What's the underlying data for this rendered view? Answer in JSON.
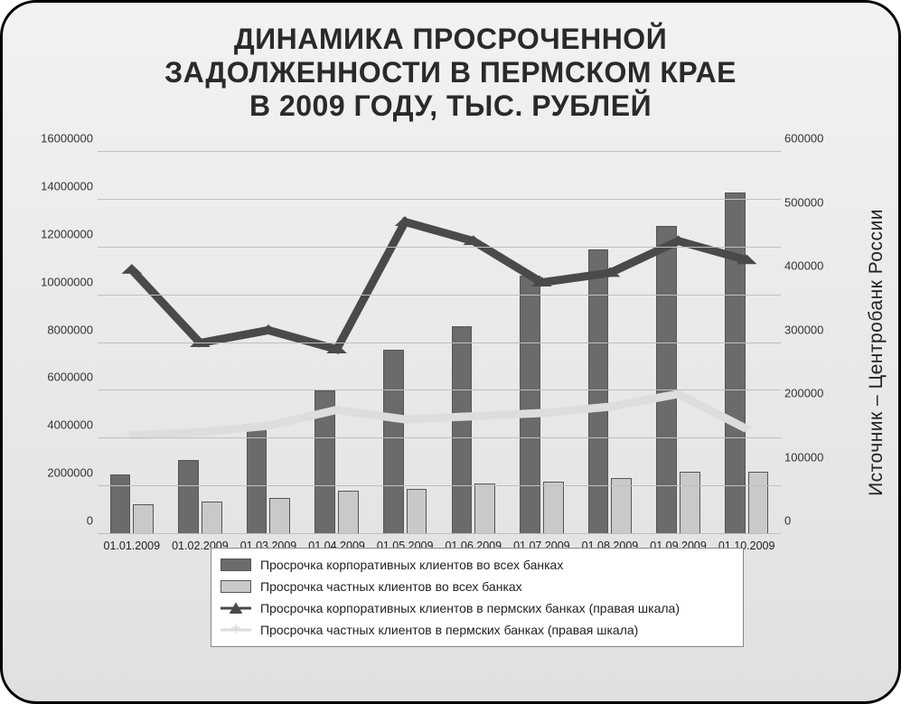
{
  "title_lines": [
    "ДИНАМИКА ПРОСРОЧЕННОЙ",
    "ЗАДОЛЖЕННОСТИ В ПЕРМСКОМ КРАЕ",
    "В 2009 ГОДУ, ТЫС. РУБЛЕЙ"
  ],
  "source_label": "Источник – Центробанк России",
  "chart": {
    "type": "bar+line-dual-axis",
    "categories": [
      "01.01.2009",
      "01.02.2009",
      "01.03.2009",
      "01.04.2009",
      "01.05.2009",
      "01.06.2009",
      "01.07.2009",
      "01.08.2009",
      "01.09.2009",
      "01.10.2009"
    ],
    "y_left": {
      "min": 0,
      "max": 16000000,
      "step": 2000000,
      "ticks": [
        "0",
        "2000000",
        "4000000",
        "6000000",
        "8000000",
        "10000000",
        "12000000",
        "14000000",
        "16000000"
      ]
    },
    "y_right": {
      "min": 0,
      "max": 600000,
      "step": 100000,
      "ticks": [
        "0",
        "100000",
        "200000",
        "300000",
        "400000",
        "500000",
        "600000"
      ]
    },
    "bars_dark": {
      "label": "Просрочка корпоративных клиентов во всех банках",
      "color": "#6b6b6b",
      "border": "#555555",
      "values": [
        2500000,
        3100000,
        4600000,
        6000000,
        7700000,
        8700000,
        10800000,
        11900000,
        12900000,
        14300000
      ]
    },
    "bars_light": {
      "label": "Просрочка частных клиентов во всех банках",
      "color": "#c9c9c9",
      "border": "#555555",
      "values": [
        1250000,
        1350000,
        1500000,
        1800000,
        1900000,
        2100000,
        2200000,
        2350000,
        2600000,
        2600000
      ]
    },
    "line_dark": {
      "label": "Просрочка корпоративных клиентов в пермских банках (правая шкала)",
      "color": "#4a4a4a",
      "width": 3,
      "marker": "triangle",
      "marker_size": 12,
      "values": [
        415000,
        300000,
        320000,
        290000,
        490000,
        460000,
        395000,
        410000,
        460000,
        430000
      ]
    },
    "line_light": {
      "label": "Просрочка частных клиентов в пермских банках (правая шкала)",
      "color": "#dddddd",
      "width": 3,
      "marker": "star",
      "marker_size": 12,
      "values": [
        155000,
        160000,
        170000,
        195000,
        180000,
        185000,
        190000,
        200000,
        220000,
        165000
      ]
    },
    "background": "linear-gradient(#f2f2f2,#e0e0e0)",
    "grid_color": "#bfbfbf",
    "axis_fontsize": 13,
    "title_fontsize": 32
  },
  "legend": {
    "items": [
      {
        "kind": "bar",
        "color": "#6b6b6b",
        "label": "Просрочка корпоративных клиентов во всех банках"
      },
      {
        "kind": "bar",
        "color": "#c9c9c9",
        "label": "Просрочка частных клиентов во всех банках"
      },
      {
        "kind": "line",
        "color": "#4a4a4a",
        "marker": "triangle",
        "label": "Просрочка корпоративных клиентов в пермских банках (правая шкала)"
      },
      {
        "kind": "line",
        "color": "#dddddd",
        "marker": "star",
        "label": "Просрочка частных клиентов в пермских банках (правая шкала)"
      }
    ]
  }
}
